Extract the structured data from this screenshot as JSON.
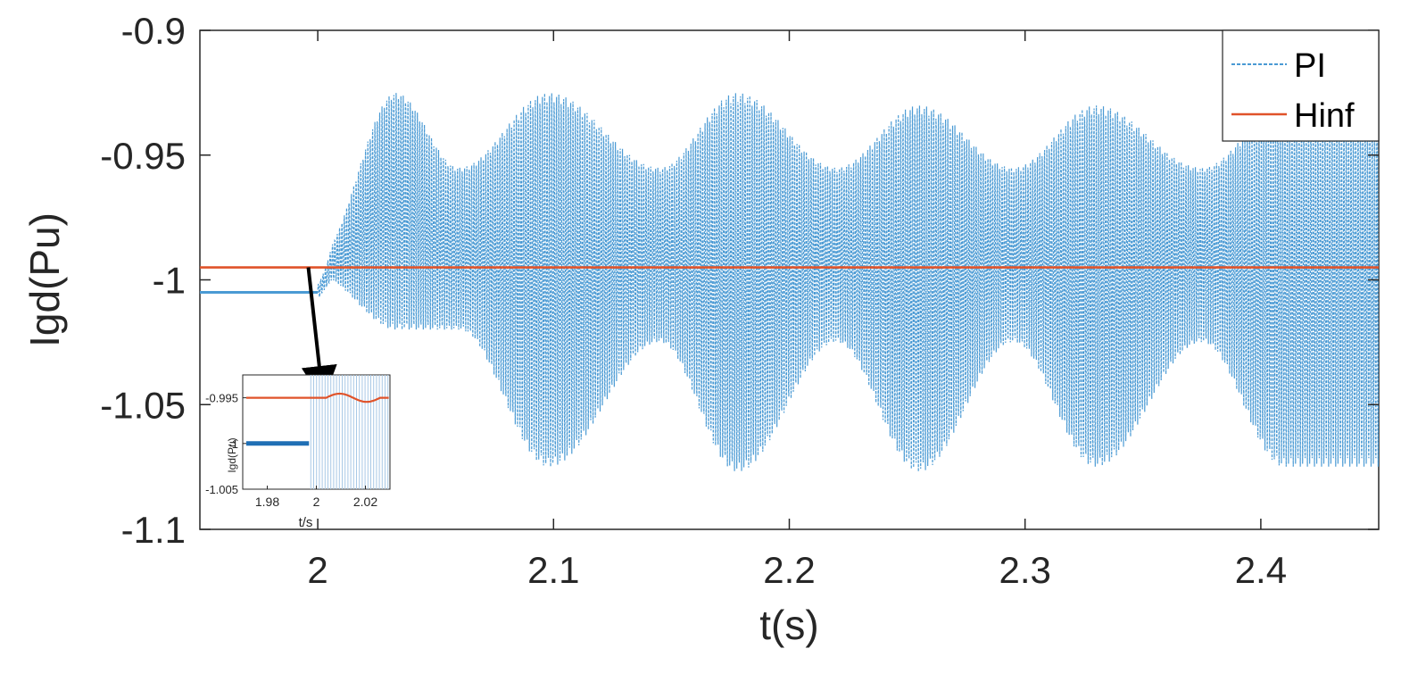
{
  "chart_data": [
    {
      "type": "line",
      "title": "",
      "xlabel": "t(s)",
      "ylabel": "Igd(Pu)",
      "xlim": [
        1.95,
        2.45
      ],
      "ylim": [
        -1.1,
        -0.9
      ],
      "xticks": [
        2,
        2.1,
        2.2,
        2.3,
        2.4
      ],
      "xtick_labels": [
        "2",
        "2.1",
        "2.2",
        "2.3",
        "2.4"
      ],
      "yticks": [
        -0.9,
        -0.95,
        -1,
        -1.05,
        -1.1
      ],
      "ytick_labels": [
        "-0.9",
        "-0.95",
        "-1",
        "-1.05",
        "-1.1"
      ],
      "grid": false,
      "legend_position": "top-right",
      "series": [
        {
          "name": "PI",
          "color": "#4a9ad4",
          "style": "dashed",
          "pre_step_value": -1.005,
          "step_time": 2.0,
          "oscillation_center": -0.995,
          "envelope_peaks": [
            {
              "t": 2.033,
              "max": -0.925,
              "min": -1.02
            },
            {
              "t": 2.098,
              "max": -0.925,
              "min": -1.075
            },
            {
              "t": 2.178,
              "max": -0.925,
              "min": -1.077
            },
            {
              "t": 2.255,
              "max": -0.93,
              "min": -1.077
            },
            {
              "t": 2.33,
              "max": -0.93,
              "min": -1.075
            },
            {
              "t": 2.41,
              "max": -0.93,
              "min": -1.075
            }
          ],
          "envelope_troughs": [
            {
              "t": 2.06,
              "max": -0.955,
              "min": -1.02
            },
            {
              "t": 2.145,
              "max": -0.955,
              "min": -1.025
            },
            {
              "t": 2.22,
              "max": -0.955,
              "min": -1.025
            },
            {
              "t": 2.295,
              "max": -0.955,
              "min": -1.025
            },
            {
              "t": 2.375,
              "max": -0.955,
              "min": -1.025
            }
          ]
        },
        {
          "name": "Hinf",
          "color": "#e0532a",
          "style": "solid",
          "value": -0.995
        }
      ]
    },
    {
      "type": "line",
      "title": "",
      "xlabel": "t/s",
      "ylabel": "Igd(Pu)",
      "xlim": [
        1.97,
        2.03
      ],
      "ylim": [
        -1.005,
        -0.9925
      ],
      "xticks": [
        1.98,
        2,
        2.02
      ],
      "xtick_labels": [
        "1.98",
        "2",
        "2.02"
      ],
      "yticks": [
        -0.995,
        -1,
        -1.005
      ],
      "ytick_labels": [
        "-0.995",
        "-1",
        "-1.005"
      ],
      "series": [
        {
          "name": "PI",
          "color": "#1f6fb5",
          "pre_step_value": -1.0,
          "step_time": 1.997
        },
        {
          "name": "Hinf",
          "color": "#e0532a",
          "value": -0.995
        }
      ]
    }
  ]
}
